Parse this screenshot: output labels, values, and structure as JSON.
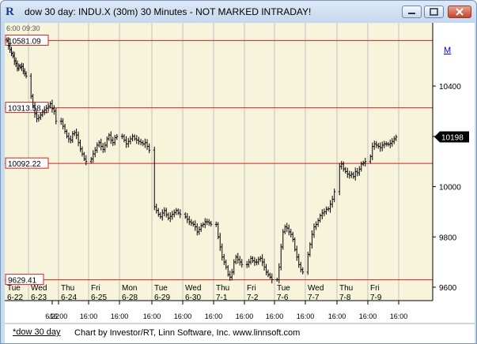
{
  "window": {
    "title": "dow 30 day: INDU.X (30m) 30 Minutes - NOT MARKED INTRADAY!",
    "app_icon": "investor-rt-icon",
    "m_link": "M"
  },
  "chart_top_text": "6:00 09:30",
  "footer": {
    "tab": "*dow 30 day",
    "credits": "Chart by Investor/RT, Linn Software, Inc. www.linnsoft.com"
  },
  "colors": {
    "background": "#f8f4dc",
    "grid_lines": "#c0c0c0",
    "level_lines": "#cc2222",
    "bars": "#000000"
  },
  "chart_data": {
    "type": "ohlc-bar",
    "ylim": [
      9600,
      10620
    ],
    "y_ticks": [
      {
        "label": "10400",
        "value": 10400
      },
      {
        "label": "10200",
        "value": 10200
      },
      {
        "label": "10000",
        "value": 10000
      },
      {
        "label": "9800",
        "value": 9800
      },
      {
        "label": "9600",
        "value": 9600
      }
    ],
    "last_price": "10198",
    "levels": [
      {
        "label": "10581.09",
        "value": 10581.09
      },
      {
        "label": "10313.58",
        "value": 10313.58
      },
      {
        "label": "10092.22",
        "value": 10092.22
      },
      {
        "label": "9629.41",
        "value": 9629.41
      }
    ],
    "days": [
      {
        "dow": "Tue",
        "date": "6-22",
        "time": "6/22"
      },
      {
        "dow": "Wed",
        "date": "6-23",
        "time": "16:00"
      },
      {
        "dow": "Thu",
        "date": "6-24",
        "time": "16:00"
      },
      {
        "dow": "Fri",
        "date": "6-25",
        "time": "16:00"
      },
      {
        "dow": "Mon",
        "date": "6-28",
        "time": "16:00"
      },
      {
        "dow": "Tue",
        "date": "6-29",
        "time": "16:00"
      },
      {
        "dow": "Wed",
        "date": "6-30",
        "time": "16:00"
      },
      {
        "dow": "Thu",
        "date": "7-1",
        "time": "16:00"
      },
      {
        "dow": "Fri",
        "date": "7-2",
        "time": "16:00"
      },
      {
        "dow": "Tue",
        "date": "7-6",
        "time": "16:00"
      },
      {
        "dow": "Wed",
        "date": "7-7",
        "time": "16:00"
      },
      {
        "dow": "Thu",
        "date": "7-8",
        "time": "16:00"
      },
      {
        "dow": "Fri",
        "date": "7-9",
        "time": "16:00"
      }
    ],
    "closes": [
      [
        10580,
        10560,
        10545,
        10530,
        10520,
        10500,
        10490,
        10470,
        10480,
        10475,
        10478,
        10460,
        10450,
        10440
      ],
      [
        10360,
        10320,
        10290,
        10270,
        10275,
        10285,
        10300,
        10305,
        10312,
        10320,
        10330,
        10310,
        10300,
        10260
      ],
      [
        10260,
        10240,
        10220,
        10200,
        10190,
        10185,
        10210,
        10215,
        10205,
        10175,
        10150,
        10130,
        10110,
        10100
      ],
      [
        10110,
        10130,
        10145,
        10165,
        10175,
        10160,
        10148,
        10165,
        10190,
        10205,
        10185,
        10175,
        10195,
        10200
      ],
      [
        10200,
        10185,
        10170,
        10180,
        10190,
        10200,
        10190,
        10185,
        10180,
        10175,
        10170,
        10175,
        10160,
        10145
      ],
      [
        9920,
        9905,
        9890,
        9880,
        9895,
        9905,
        9888,
        9875,
        9882,
        9890,
        9897,
        9905,
        9895,
        9890
      ],
      [
        9880,
        9870,
        9860,
        9855,
        9850,
        9840,
        9820,
        9830,
        9845,
        9850,
        9860,
        9860,
        9855,
        9850
      ],
      [
        9850,
        9800,
        9760,
        9720,
        9700,
        9680,
        9650,
        9640,
        9660,
        9700,
        9720,
        9710,
        9700,
        9690
      ],
      [
        9690,
        9700,
        9715,
        9705,
        9700,
        9700,
        9710,
        9715,
        9700,
        9680,
        9660,
        9650,
        9640,
        9630
      ],
      [
        9630,
        9680,
        9760,
        9820,
        9840,
        9835,
        9820,
        9810,
        9790,
        9750,
        9720,
        9690,
        9670,
        9660
      ],
      [
        9730,
        9770,
        9810,
        9840,
        9850,
        9865,
        9885,
        9895,
        9900,
        9910,
        9912,
        9930,
        9950,
        9980
      ],
      [
        10080,
        10090,
        10070,
        10060,
        10050,
        10045,
        10050,
        10040,
        10060,
        10055,
        10070,
        10090,
        10095,
        10100
      ],
      [
        10120,
        10160,
        10170,
        10165,
        10160,
        10155,
        10165,
        10170,
        10170,
        10168,
        10172,
        10180,
        10190,
        10198
      ]
    ]
  }
}
